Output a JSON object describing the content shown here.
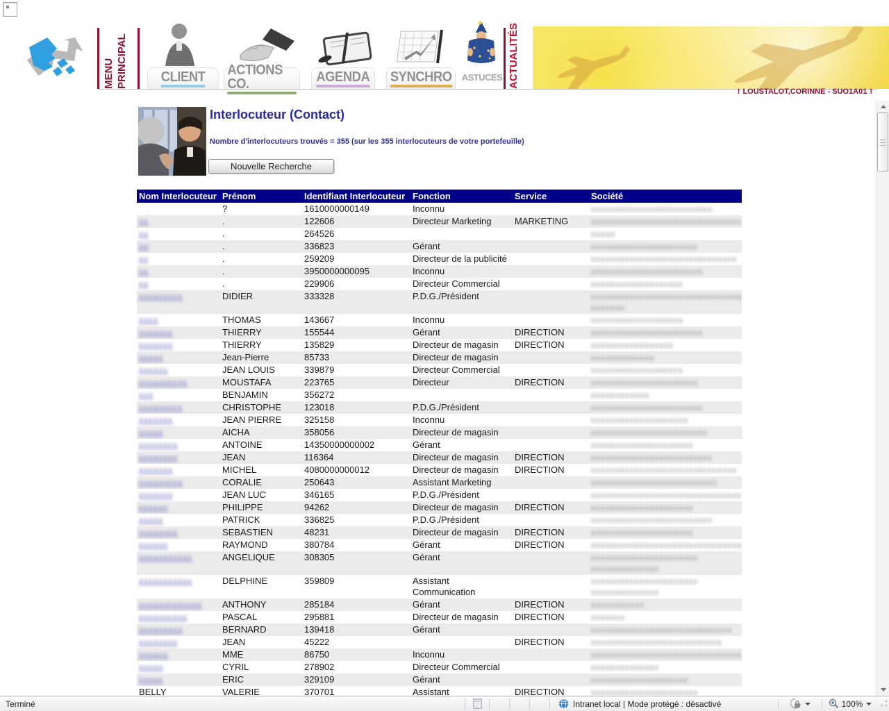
{
  "header": {
    "menu_vertical_line1": "MENU",
    "menu_vertical_line2": "PRINCIPAL",
    "actualites_vertical": "ACTUALITÉS",
    "user_badge": "LOUSTALOT,CORINNE - SUO1A01",
    "user_badge_marker": "!",
    "accent_maroon": "#8e1230",
    "tabs": [
      {
        "id": "client",
        "label": "CLIENT",
        "underline": "#96c9e4",
        "icon": "businessman-photo"
      },
      {
        "id": "actions",
        "label": "ACTIONS CO.",
        "underline": "#8cab72",
        "icon": "handshake-photo"
      },
      {
        "id": "agenda",
        "label": "AGENDA",
        "underline": "#c9a9d6",
        "icon": "organizer-photo"
      },
      {
        "id": "synchro",
        "label": "SYNCHRO",
        "underline": "#d8b155",
        "icon": "chart-photo"
      },
      {
        "id": "astuces",
        "label": "ASTUCES",
        "underline": "",
        "icon": "wizard-graphic"
      }
    ]
  },
  "content": {
    "page_title": "Interlocuteur (Contact)",
    "result_summary": "Nombre d'interlocuteurs trouvés = 355 (sur les 355 interlocuteurs de votre portefeuille)",
    "new_search_button": "Nouvelle Recherche"
  },
  "table": {
    "header_bg": "#00008b",
    "columns": [
      "Nom Interlocuteur",
      "Prénom",
      "Identifiant Interlocuteur",
      "Fonction",
      "Service",
      "Société"
    ],
    "rows": [
      {
        "nom_mask": 0,
        "prenom": "?",
        "id": "1610000000149",
        "fonction": "Inconnu",
        "service": "",
        "societe_mask": [
          25
        ]
      },
      {
        "nom_mask": 2,
        "prenom": ".",
        "id": "122606",
        "fonction": "Directeur Marketing",
        "service": "MARKETING",
        "societe_mask": [
          31
        ]
      },
      {
        "nom_mask": 2,
        "prenom": ".",
        "id": "264526",
        "fonction": "",
        "service": "",
        "societe_mask": [
          5
        ]
      },
      {
        "nom_mask": 2,
        "prenom": ".",
        "id": "336823",
        "fonction": "Gérant",
        "service": "",
        "societe_mask": [
          22
        ]
      },
      {
        "nom_mask": 2,
        "prenom": ".",
        "id": "259209",
        "fonction": "Directeur de la publicité",
        "service": "",
        "societe_mask": [
          30
        ]
      },
      {
        "nom_mask": 2,
        "prenom": ".",
        "id": "3950000000095",
        "fonction": "Inconnu",
        "service": "",
        "societe_mask": [
          23
        ]
      },
      {
        "nom_mask": 2,
        "prenom": ".",
        "id": "229906",
        "fonction": "Directeur Commercial",
        "service": "",
        "societe_mask": [
          19
        ]
      },
      {
        "nom_mask": 9,
        "prenom": "DIDIER",
        "id": "333328",
        "fonction": "P.D.G./Président",
        "service": "",
        "societe_mask": [
          36,
          7
        ]
      },
      {
        "nom_mask": 4,
        "prenom": "THOMAS",
        "id": "143667",
        "fonction": "Inconnu",
        "service": "",
        "societe_mask": [
          19
        ]
      },
      {
        "nom_mask": 7,
        "prenom": "THIERRY",
        "id": "155544",
        "fonction": "Gérant",
        "service": "DIRECTION",
        "societe_mask": [
          23
        ]
      },
      {
        "nom_mask": 7,
        "prenom": "THIERRY",
        "id": "135829",
        "fonction": "Directeur de magasin",
        "service": "DIRECTION",
        "societe_mask": [
          17
        ]
      },
      {
        "nom_mask": 5,
        "prenom": "Jean-Pierre",
        "id": "85733",
        "fonction": "Directeur de magasin",
        "service": "",
        "societe_mask": [
          13
        ]
      },
      {
        "nom_mask": 6,
        "prenom": "JEAN LOUIS",
        "id": "339879",
        "fonction": "Directeur Commercial",
        "service": "",
        "societe_mask": [
          19
        ]
      },
      {
        "nom_mask": 10,
        "prenom": "MOUSTAFA",
        "id": "223765",
        "fonction": "Directeur",
        "service": "DIRECTION",
        "societe_mask": [
          22
        ]
      },
      {
        "nom_mask": 3,
        "prenom": "BENJAMIN",
        "id": "356272",
        "fonction": "",
        "service": "",
        "societe_mask": [
          12
        ]
      },
      {
        "nom_mask": 9,
        "prenom": "CHRISTOPHE",
        "id": "123018",
        "fonction": "P.D.G./Président",
        "service": "",
        "societe_mask": [
          23
        ]
      },
      {
        "nom_mask": 7,
        "prenom": "JEAN PIERRE",
        "id": "325158",
        "fonction": "Inconnu",
        "service": "",
        "societe_mask": [
          20
        ]
      },
      {
        "nom_mask": 5,
        "prenom": "AICHA",
        "id": "358056",
        "fonction": "Directeur de magasin",
        "service": "",
        "societe_mask": [
          24
        ]
      },
      {
        "nom_mask": 8,
        "prenom": "ANTOINE",
        "id": "14350000000002",
        "fonction": "Gérant",
        "service": "",
        "societe_mask": [
          21
        ]
      },
      {
        "nom_mask": 8,
        "prenom": "JEAN",
        "id": "116364",
        "fonction": "Directeur de magasin",
        "service": "DIRECTION",
        "societe_mask": [
          25
        ]
      },
      {
        "nom_mask": 7,
        "prenom": "MICHEL",
        "id": "4080000000012",
        "fonction": "Directeur de magasin",
        "service": "DIRECTION",
        "societe_mask": [
          30
        ]
      },
      {
        "nom_mask": 9,
        "prenom": "CORALIE",
        "id": "250643",
        "fonction": "Assistant Marketing",
        "service": "",
        "societe_mask": [
          26
        ]
      },
      {
        "nom_mask": 7,
        "prenom": "JEAN LUC",
        "id": "346165",
        "fonction": "P.D.G./Président",
        "service": "",
        "societe_mask": [
          31
        ]
      },
      {
        "nom_mask": 6,
        "prenom": "PHILIPPE",
        "id": "94262",
        "fonction": "Directeur de magasin",
        "service": "DIRECTION",
        "societe_mask": [
          21
        ]
      },
      {
        "nom_mask": 5,
        "prenom": "PATRICK",
        "id": "336825",
        "fonction": "P.D.G./Président",
        "service": "",
        "societe_mask": [
          25
        ]
      },
      {
        "nom_mask": 8,
        "prenom": "SEBASTIEN",
        "id": "48231",
        "fonction": "Directeur de magasin",
        "service": "DIRECTION",
        "societe_mask": [
          21
        ]
      },
      {
        "nom_mask": 6,
        "prenom": "RAYMOND",
        "id": "380784",
        "fonction": "Gérant",
        "service": "DIRECTION",
        "societe_mask": [
          32
        ]
      },
      {
        "nom_mask": 11,
        "prenom": "ANGELIQUE",
        "id": "308305",
        "fonction": "Gérant",
        "service": "",
        "societe_mask": [
          22,
          14
        ]
      },
      {
        "nom_mask": 11,
        "prenom": "DELPHINE",
        "id": "359809",
        "fonction": "Assistant Communication",
        "service": "",
        "societe_mask": [
          22,
          14
        ]
      },
      {
        "nom_mask": 13,
        "prenom": "ANTHONY",
        "id": "285184",
        "fonction": "Gérant",
        "service": "DIRECTION",
        "societe_mask": [
          11
        ]
      },
      {
        "nom_mask": 10,
        "prenom": "PASCAL",
        "id": "295881",
        "fonction": "Directeur de magasin",
        "service": "DIRECTION",
        "societe_mask": [
          7
        ]
      },
      {
        "nom_mask": 9,
        "prenom": "BERNARD",
        "id": "139418",
        "fonction": "Gérant",
        "service": "",
        "societe_mask": [
          29
        ]
      },
      {
        "nom_mask": 8,
        "prenom": "JEAN",
        "id": "45222",
        "fonction": "",
        "service": "DIRECTION",
        "societe_mask": [
          27
        ]
      },
      {
        "nom_mask": 6,
        "prenom": "MME",
        "id": "86750",
        "fonction": "Inconnu",
        "service": "",
        "societe_mask": [
          31
        ]
      },
      {
        "nom_mask": 5,
        "prenom": "CYRIL",
        "id": "278902",
        "fonction": "Directeur Commercial",
        "service": "",
        "societe_mask": [
          14
        ]
      },
      {
        "nom_mask": 5,
        "prenom": "ERIC",
        "id": "329109",
        "fonction": "Gérant",
        "service": "",
        "societe_mask": [
          20
        ]
      },
      {
        "nom_text": "BELLY",
        "nom_mask": 0,
        "prenom": "VALERIE",
        "id": "370701",
        "fonction": "Assistant",
        "service": "DIRECTION",
        "societe_mask": [
          22
        ]
      }
    ]
  },
  "statusbar": {
    "left_text": "Terminé",
    "zone_text": "Intranet local | Mode protégé : désactivé",
    "zoom_level": "100%"
  }
}
